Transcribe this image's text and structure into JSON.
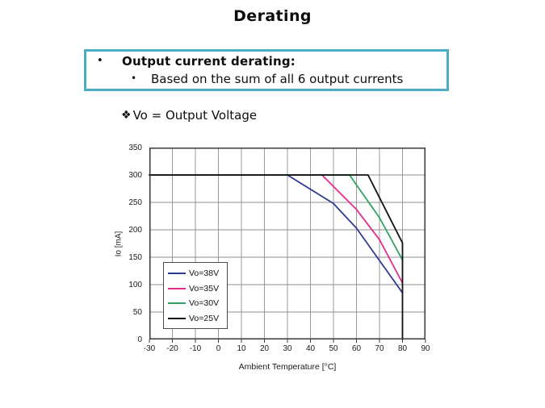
{
  "title": "Derating",
  "callout": {
    "bullet": "•",
    "heading": "Output current derating:",
    "sub_bullet": "•",
    "sub_text": "Based on the sum of all 6 output currents",
    "border_color": "#4BACC6"
  },
  "note": {
    "marker": "❖",
    "text": "Vo = Output Voltage"
  },
  "colors": {
    "accent_teal": "#4BACC6",
    "grid": "#8f8f8f",
    "frame": "#3a3a3a",
    "text": "#111111"
  },
  "chart_data": {
    "type": "line",
    "title": "",
    "xlabel": "Ambient Temperature [°C]",
    "ylabel": "Io [mA]",
    "xlim": [
      -30,
      90
    ],
    "ylim": [
      0,
      350
    ],
    "x_ticks": [
      -30,
      -20,
      -10,
      0,
      10,
      20,
      30,
      40,
      50,
      60,
      70,
      80,
      90
    ],
    "y_ticks": [
      0,
      50,
      100,
      150,
      200,
      250,
      300,
      350
    ],
    "grid": true,
    "legend_position": "inside-lower-left",
    "series": [
      {
        "name": "Vo=38V",
        "color": "#2F3A93",
        "points": [
          [
            -30,
            300
          ],
          [
            30,
            300
          ],
          [
            50,
            248
          ],
          [
            60,
            203
          ],
          [
            70,
            144
          ],
          [
            80,
            85
          ]
        ]
      },
      {
        "name": "Vo=35V",
        "color": "#E12D8C",
        "points": [
          [
            -30,
            300
          ],
          [
            45,
            300
          ],
          [
            60,
            237
          ],
          [
            70,
            182
          ],
          [
            80,
            103
          ]
        ]
      },
      {
        "name": "Vo=30V",
        "color": "#2DA35F",
        "points": [
          [
            -30,
            300
          ],
          [
            57,
            300
          ],
          [
            70,
            222
          ],
          [
            80,
            145
          ]
        ]
      },
      {
        "name": "Vo=25V",
        "color": "#101010",
        "points": [
          [
            -30,
            300
          ],
          [
            65,
            300
          ],
          [
            80,
            176
          ],
          [
            80,
            0
          ]
        ]
      }
    ]
  }
}
